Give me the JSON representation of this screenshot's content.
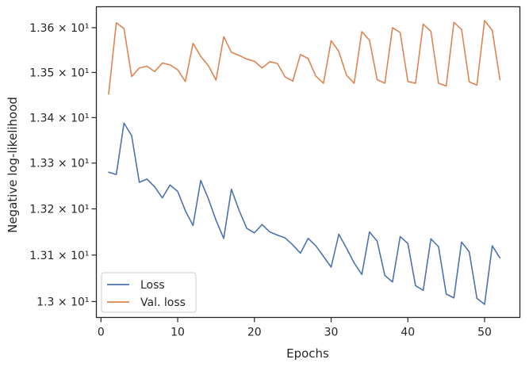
{
  "chart_data": {
    "type": "line",
    "xlabel": "Epochs",
    "ylabel": "Negative log-likelihood",
    "xlim": [
      -0.6,
      54.6
    ],
    "ylim": [
      12.966,
      13.647
    ],
    "y_scale": "log",
    "grid": false,
    "legend_position": "lower-left",
    "x_ticks": [
      {
        "value": 0,
        "label": "0"
      },
      {
        "value": 10,
        "label": "10"
      },
      {
        "value": 20,
        "label": "20"
      },
      {
        "value": 30,
        "label": "30"
      },
      {
        "value": 40,
        "label": "40"
      },
      {
        "value": 50,
        "label": "50"
      }
    ],
    "y_ticks": [
      {
        "value": 13.0,
        "label": "1.3 × 10¹"
      },
      {
        "value": 13.1,
        "label": "1.31 × 10¹"
      },
      {
        "value": 13.2,
        "label": "1.32 × 10¹"
      },
      {
        "value": 13.3,
        "label": "1.33 × 10¹"
      },
      {
        "value": 13.4,
        "label": "1.34 × 10¹"
      },
      {
        "value": 13.5,
        "label": "1.35 × 10¹"
      },
      {
        "value": 13.6,
        "label": "1.36 × 10¹"
      }
    ],
    "x": [
      1,
      2,
      3,
      4,
      5,
      6,
      7,
      8,
      9,
      10,
      11,
      12,
      13,
      14,
      15,
      16,
      17,
      18,
      19,
      20,
      21,
      22,
      23,
      24,
      25,
      26,
      27,
      28,
      29,
      30,
      31,
      32,
      33,
      34,
      35,
      36,
      37,
      38,
      39,
      40,
      41,
      42,
      43,
      44,
      45,
      46,
      47,
      48,
      49,
      50,
      51,
      52
    ],
    "series": [
      {
        "name": "Loss",
        "color": "#4c72b0",
        "values": [
          13.28,
          13.275,
          13.388,
          13.36,
          13.258,
          13.265,
          13.248,
          13.224,
          13.252,
          13.238,
          13.196,
          13.164,
          13.262,
          13.222,
          13.175,
          13.136,
          13.243,
          13.197,
          13.158,
          13.148,
          13.166,
          13.15,
          13.143,
          13.137,
          13.122,
          13.104,
          13.136,
          13.12,
          13.097,
          13.074,
          13.145,
          13.115,
          13.083,
          13.058,
          13.15,
          13.13,
          13.056,
          13.042,
          13.14,
          13.125,
          13.034,
          13.024,
          13.135,
          13.118,
          13.016,
          13.008,
          13.128,
          13.107,
          13.007,
          12.994,
          13.12,
          13.094
        ]
      },
      {
        "name": "Val. loss",
        "color": "#dd8452",
        "values": [
          13.452,
          13.611,
          13.598,
          13.491,
          13.51,
          13.514,
          13.502,
          13.521,
          13.517,
          13.506,
          13.48,
          13.565,
          13.536,
          13.515,
          13.483,
          13.58,
          13.545,
          13.538,
          13.53,
          13.525,
          13.51,
          13.524,
          13.52,
          13.49,
          13.481,
          13.54,
          13.531,
          13.492,
          13.476,
          13.571,
          13.547,
          13.494,
          13.476,
          13.591,
          13.572,
          13.484,
          13.476,
          13.6,
          13.589,
          13.48,
          13.476,
          13.608,
          13.592,
          13.476,
          13.47,
          13.612,
          13.596,
          13.479,
          13.472,
          13.616,
          13.594,
          13.484
        ]
      }
    ]
  }
}
